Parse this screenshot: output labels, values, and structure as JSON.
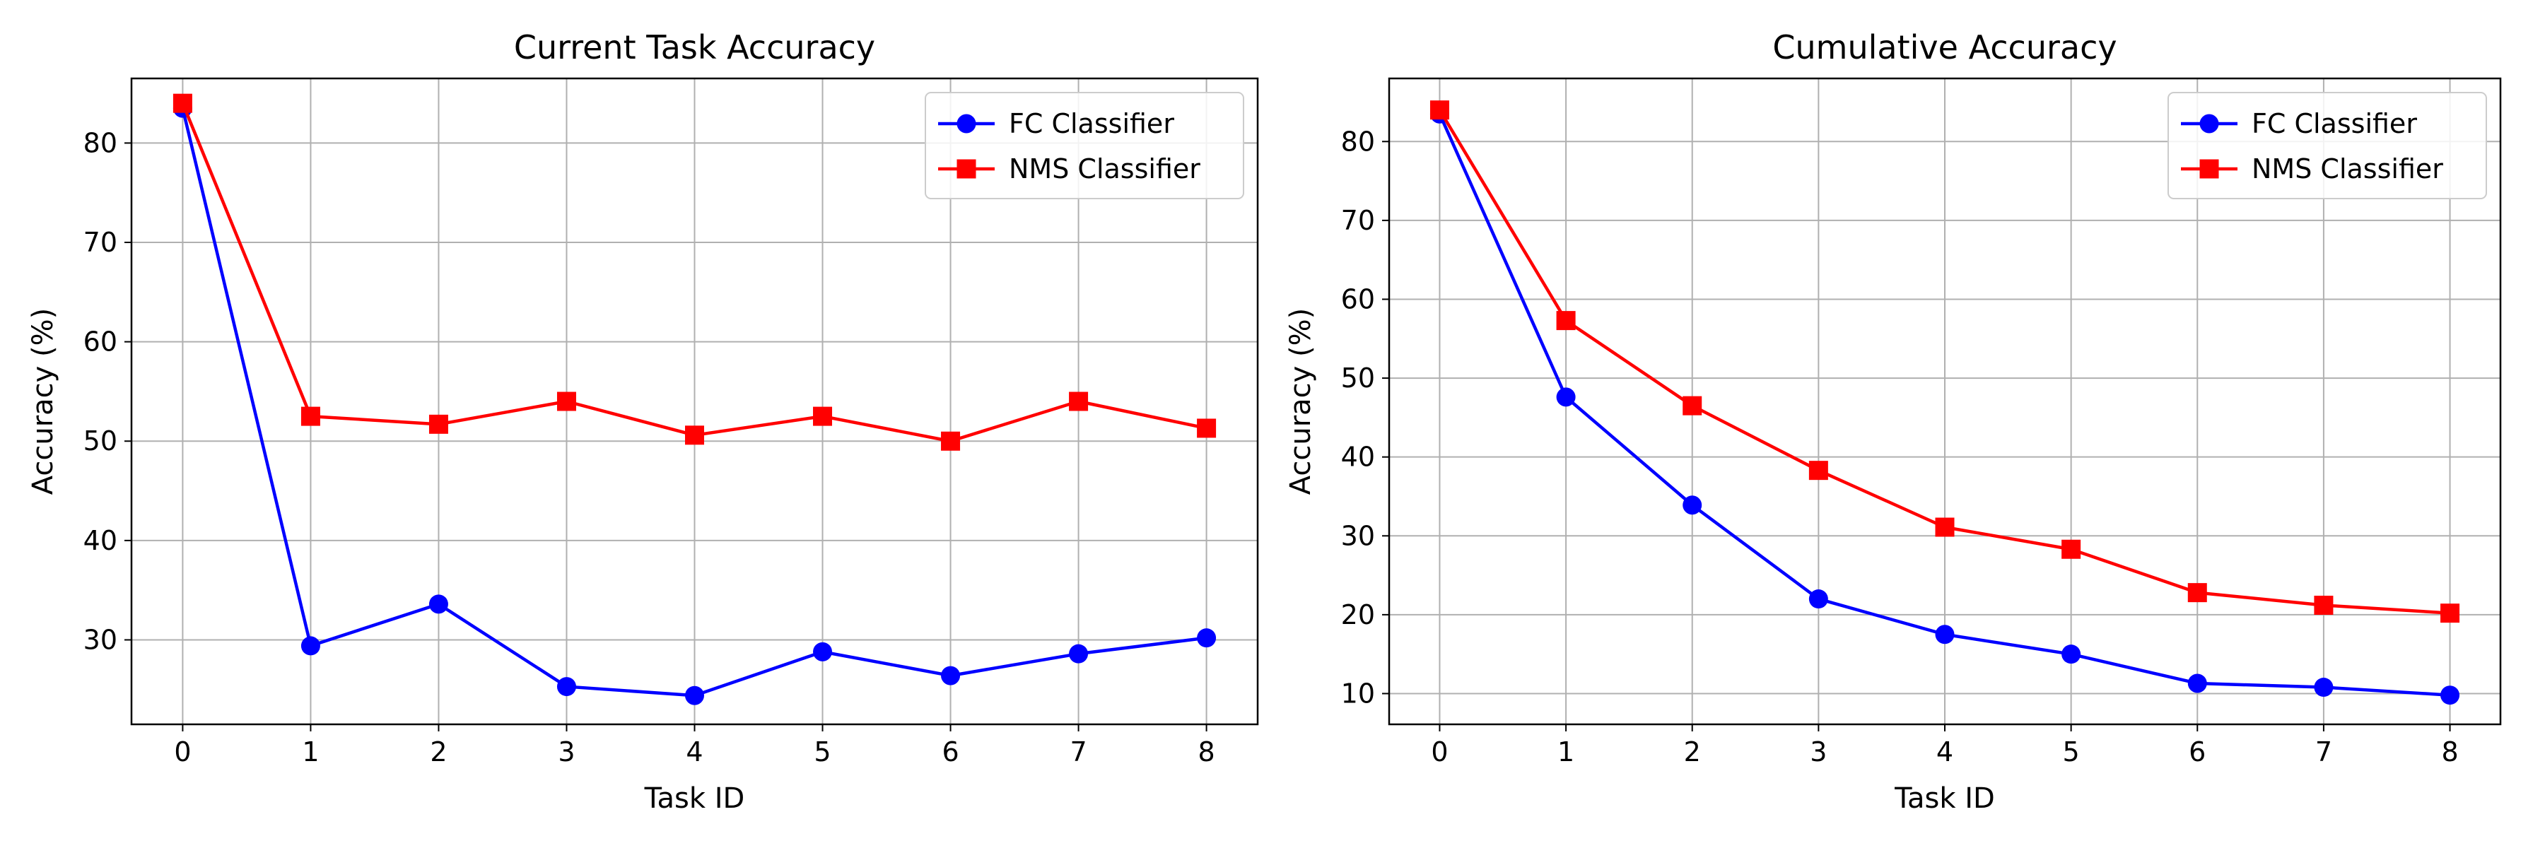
{
  "chart_data": [
    {
      "type": "line",
      "title": "Current Task Accuracy",
      "xlabel": "Task ID",
      "ylabel": "Accuracy (%)",
      "x": [
        0,
        1,
        2,
        3,
        4,
        5,
        6,
        7,
        8
      ],
      "xlim": [
        -0.4,
        8.4
      ],
      "ylim": [
        21.5,
        86.5
      ],
      "xticks": [
        0,
        1,
        2,
        3,
        4,
        5,
        6,
        7,
        8
      ],
      "yticks": [
        30,
        40,
        50,
        60,
        70,
        80
      ],
      "grid": true,
      "legend_position": "top-right",
      "series": [
        {
          "name": "FC Classifier",
          "color": "#0000ff",
          "marker": "circle",
          "values": [
            83.5,
            29.4,
            33.6,
            25.3,
            24.4,
            28.8,
            26.4,
            28.6,
            30.2
          ]
        },
        {
          "name": "NMS Classifier",
          "color": "#ff0000",
          "marker": "square",
          "values": [
            84.0,
            52.5,
            51.7,
            54.0,
            50.6,
            52.5,
            50.0,
            54.0,
            51.3
          ]
        }
      ]
    },
    {
      "type": "line",
      "title": "Cumulative Accuracy",
      "xlabel": "Task ID",
      "ylabel": "Accuracy (%)",
      "x": [
        0,
        1,
        2,
        3,
        4,
        5,
        6,
        7,
        8
      ],
      "xlim": [
        -0.4,
        8.4
      ],
      "ylim": [
        6.1,
        88.0
      ],
      "xticks": [
        0,
        1,
        2,
        3,
        4,
        5,
        6,
        7,
        8
      ],
      "yticks": [
        10,
        20,
        30,
        40,
        50,
        60,
        70,
        80
      ],
      "grid": true,
      "legend_position": "top-right",
      "series": [
        {
          "name": "FC Classifier",
          "color": "#0000ff",
          "marker": "circle",
          "values": [
            83.5,
            47.6,
            33.9,
            22.0,
            17.5,
            15.0,
            11.3,
            10.8,
            9.8
          ]
        },
        {
          "name": "NMS Classifier",
          "color": "#ff0000",
          "marker": "square",
          "values": [
            84.0,
            57.3,
            46.5,
            38.3,
            31.1,
            28.3,
            22.8,
            21.2,
            20.2
          ]
        }
      ]
    }
  ]
}
